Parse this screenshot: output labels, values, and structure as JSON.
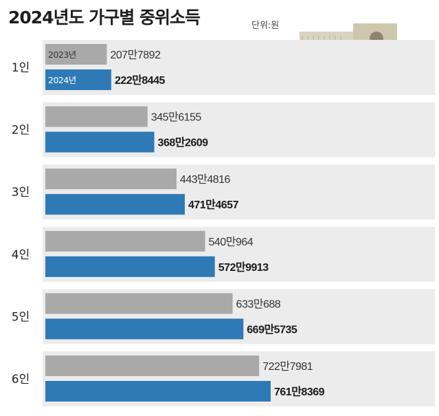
{
  "title": "2024년도 가구별 중위소득",
  "unit": "단위:원",
  "colors": {
    "bar_2023": "#a9a9a9",
    "bar_2024": "#2e7ab6",
    "panel": "#ececec",
    "text_dark": "#1a1a1a"
  },
  "chart_data": {
    "type": "bar",
    "orientation": "horizontal",
    "categories": [
      "1인",
      "2인",
      "3인",
      "4인",
      "5인",
      "6인"
    ],
    "series": [
      {
        "name": "2023년",
        "values": [
          2077892,
          3456155,
          4434816,
          5400964,
          6330688,
          7227981
        ],
        "labels": [
          "207만7892",
          "345만6155",
          "443만4816",
          "540만964",
          "633만688",
          "722만7981"
        ]
      },
      {
        "name": "2024년",
        "values": [
          2228445,
          3682609,
          4714657,
          5729913,
          6695735,
          7618369
        ],
        "labels": [
          "222만8445",
          "368만2609",
          "471만4657",
          "572만9913",
          "669만5735",
          "761만8369"
        ]
      }
    ],
    "title": "2024년도 가구별 중위소득",
    "unit": "단위:원",
    "legend": "inside-first-group",
    "grid": false
  }
}
